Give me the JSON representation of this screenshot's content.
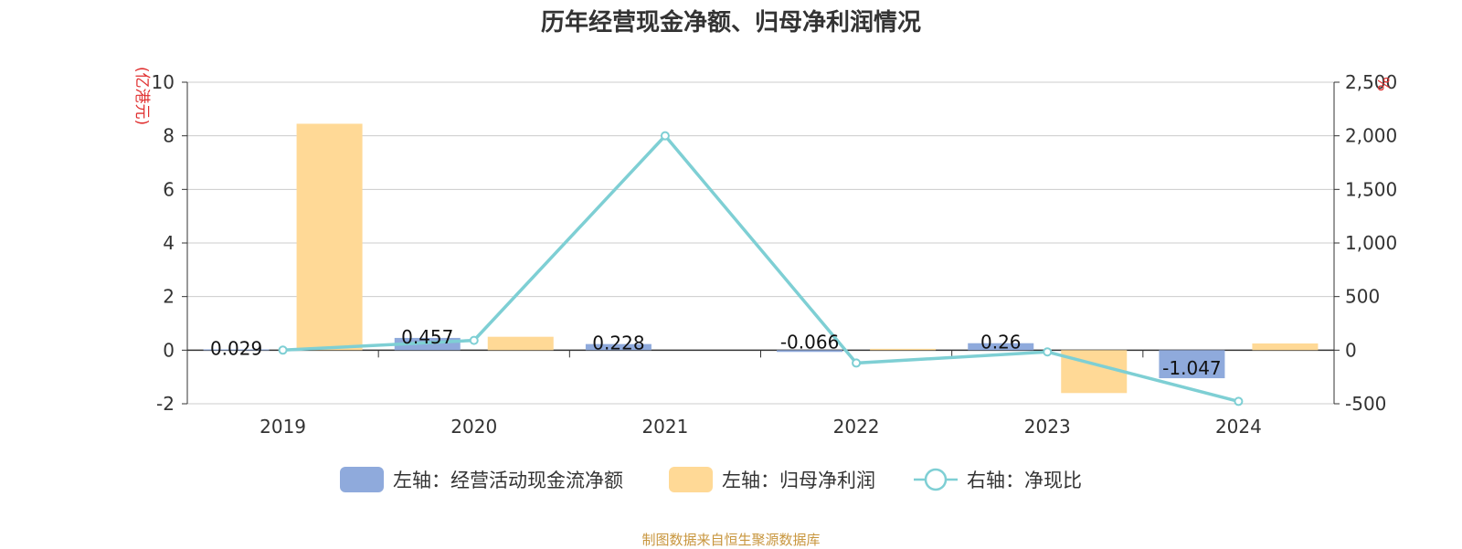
{
  "title": "历年经营现金净额、归母净利润情况",
  "source_note": "制图数据来自恒生聚源数据库",
  "chart_data": {
    "type": "bar",
    "categories": [
      "2019",
      "2020",
      "2021",
      "2022",
      "2023",
      "2024"
    ],
    "series": [
      {
        "name": "经营活动现金流净额",
        "axis": "left",
        "kind": "bar",
        "color": "#8faadc",
        "values": [
          0.029,
          0.457,
          0.228,
          -0.066,
          0.26,
          -1.047
        ],
        "labels": [
          "0.029",
          "0.457",
          "0.228",
          "-0.066",
          "0.26",
          "-1.047"
        ]
      },
      {
        "name": "归母净利润",
        "axis": "left",
        "kind": "bar",
        "color": "#ffd996",
        "values": [
          8.45,
          0.5,
          0.0,
          0.05,
          -1.6,
          0.25
        ]
      },
      {
        "name": "净现比",
        "axis": "right",
        "kind": "line",
        "color": "#7ecfd4",
        "values": [
          0.34,
          91.4,
          2000,
          -120,
          -16.25,
          -478
        ]
      }
    ],
    "left_axis": {
      "unit": "(亿港元)",
      "min": -2,
      "max": 10,
      "ticks": [
        -2,
        0,
        2,
        4,
        6,
        8,
        10
      ],
      "tick_labels": [
        "-2",
        "0",
        "2",
        "4",
        "6",
        "8",
        "10"
      ]
    },
    "right_axis": {
      "unit": "%",
      "min": -500,
      "max": 2500,
      "ticks": [
        -500,
        0,
        500,
        1000,
        1500,
        2000,
        2500
      ],
      "tick_labels": [
        "-500",
        "0",
        "500",
        "1,000",
        "1,500",
        "2,000",
        "2,500"
      ]
    },
    "grid": true,
    "legend": {
      "placement": "bottom",
      "items": [
        {
          "label": "左轴：经营活动现金流净额",
          "kind": "bar",
          "color": "#8faadc"
        },
        {
          "label": "左轴：归母净利润",
          "kind": "bar",
          "color": "#ffd996"
        },
        {
          "label": "右轴：净现比",
          "kind": "line",
          "color": "#7ecfd4"
        }
      ]
    },
    "unit_color": "#e03030"
  }
}
